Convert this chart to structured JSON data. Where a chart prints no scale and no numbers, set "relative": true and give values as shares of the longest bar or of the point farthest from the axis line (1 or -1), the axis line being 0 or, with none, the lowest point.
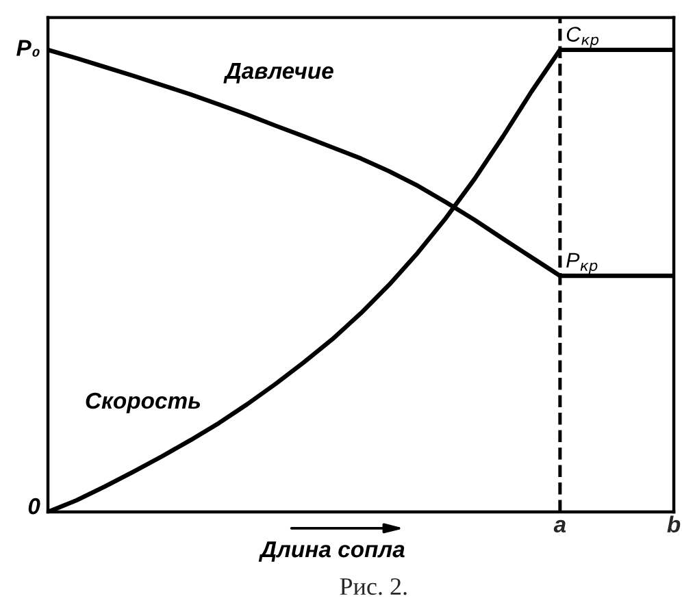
{
  "chart_data": {
    "type": "line",
    "relative": true,
    "xlabel": "Длина сопла",
    "categories": [
      null,
      null,
      null,
      null,
      null,
      null,
      null,
      null,
      null,
      null,
      null,
      null,
      null,
      null,
      null,
      null,
      null,
      null,
      "a",
      null,
      null,
      null,
      "b"
    ],
    "series": [
      {
        "name": "Давлечие",
        "color": "#000000",
        "values": [
          1.0,
          0.982,
          0.963,
          0.944,
          0.924,
          0.904,
          0.882,
          0.86,
          0.836,
          0.813,
          0.789,
          0.765,
          0.737,
          0.706,
          0.67,
          0.632,
          0.591,
          0.551,
          0.511,
          0.511,
          0.511,
          0.511,
          0.511
        ]
      },
      {
        "name": "Скорость",
        "color": "#000000",
        "values": [
          0,
          0.025,
          0.055,
          0.087,
          0.12,
          0.155,
          0.192,
          0.233,
          0.277,
          0.324,
          0.374,
          0.43,
          0.492,
          0.561,
          0.637,
          0.721,
          0.813,
          0.91,
          1.0,
          1.0,
          1.0,
          1.0,
          1.0
        ]
      }
    ],
    "ref_lines": [
      {
        "axis": "x",
        "value": "a",
        "color": "#000000",
        "line_style": "dashed"
      }
    ],
    "annotations": [
      "P₀",
      "0",
      {
        "text": "C$_{кр}$",
        "x": "a",
        "y": 1.0
      },
      {
        "text": "P$_{кр}$",
        "x": "a",
        "y": 0.511
      },
      "Рис. 2."
    ],
    "line_style": "solid"
  }
}
